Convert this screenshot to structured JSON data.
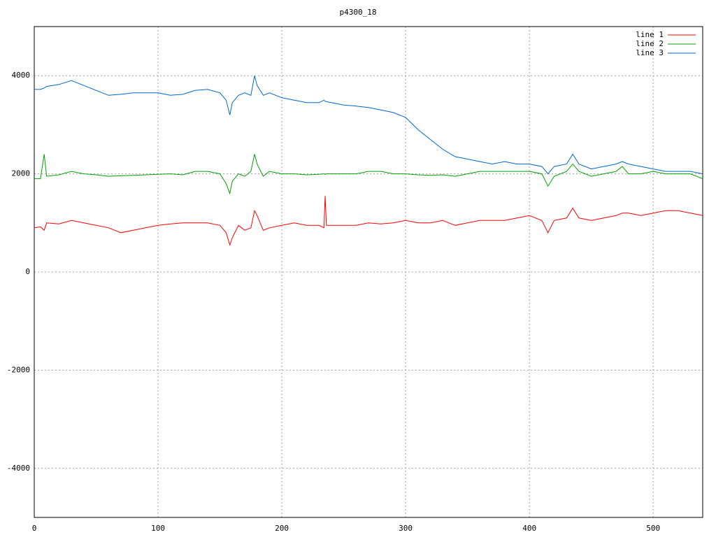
{
  "chart_data": {
    "type": "line",
    "title": "p4300_18",
    "x": [
      0,
      5,
      8,
      10,
      20,
      30,
      40,
      50,
      60,
      70,
      80,
      90,
      100,
      110,
      120,
      130,
      140,
      150,
      155,
      158,
      160,
      165,
      170,
      175,
      178,
      180,
      185,
      190,
      200,
      210,
      220,
      230,
      234,
      235,
      236,
      240,
      250,
      260,
      270,
      280,
      290,
      300,
      310,
      320,
      330,
      340,
      350,
      360,
      370,
      380,
      390,
      400,
      410,
      415,
      420,
      430,
      435,
      440,
      450,
      460,
      470,
      475,
      480,
      490,
      500,
      510,
      520,
      530,
      540
    ],
    "series": [
      {
        "name": "line 1",
        "color": "#ff0000",
        "values": [
          900,
          920,
          850,
          1000,
          980,
          1050,
          1000,
          950,
          900,
          800,
          850,
          900,
          950,
          980,
          1000,
          1000,
          1000,
          950,
          800,
          550,
          700,
          950,
          850,
          900,
          1250,
          1150,
          850,
          900,
          950,
          1000,
          950,
          950,
          900,
          1550,
          950,
          950,
          950,
          950,
          1000,
          980,
          1000,
          1050,
          1000,
          1000,
          1050,
          950,
          1000,
          1050,
          1050,
          1050,
          1100,
          1150,
          1050,
          800,
          1050,
          1100,
          1300,
          1100,
          1050,
          1100,
          1150,
          1200,
          1200,
          1150,
          1200,
          1250,
          1250,
          1200,
          1150
        ]
      },
      {
        "name": "line 2",
        "color": "#00a000",
        "values": [
          1900,
          1900,
          2400,
          1950,
          1980,
          2050,
          2000,
          1980,
          1950,
          1960,
          1970,
          1980,
          1990,
          2000,
          1980,
          2050,
          2050,
          2000,
          1800,
          1600,
          1850,
          2000,
          1950,
          2050,
          2400,
          2200,
          1950,
          2050,
          2000,
          2000,
          1980,
          1990,
          2000,
          1990,
          2000,
          2000,
          2000,
          2000,
          2050,
          2050,
          2000,
          2000,
          1980,
          1970,
          1980,
          1950,
          2000,
          2050,
          2050,
          2050,
          2050,
          2050,
          2000,
          1750,
          1950,
          2050,
          2200,
          2050,
          1950,
          2000,
          2050,
          2150,
          2000,
          2000,
          2050,
          2000,
          2000,
          2000,
          1900
        ]
      },
      {
        "name": "line 3",
        "color": "#0066cc",
        "values": [
          3720,
          3720,
          3750,
          3780,
          3820,
          3900,
          3800,
          3700,
          3600,
          3620,
          3650,
          3650,
          3650,
          3600,
          3620,
          3700,
          3720,
          3650,
          3500,
          3200,
          3450,
          3600,
          3650,
          3600,
          4000,
          3800,
          3600,
          3650,
          3550,
          3500,
          3450,
          3450,
          3500,
          3480,
          3470,
          3450,
          3400,
          3380,
          3350,
          3300,
          3250,
          3150,
          2900,
          2700,
          2500,
          2350,
          2300,
          2250,
          2200,
          2250,
          2200,
          2200,
          2150,
          2000,
          2150,
          2200,
          2400,
          2200,
          2100,
          2150,
          2200,
          2250,
          2200,
          2150,
          2100,
          2050,
          2050,
          2050,
          2000
        ]
      }
    ],
    "xlim": [
      0,
      540
    ],
    "ylim": [
      -5000,
      5000
    ],
    "xticks": [
      0,
      100,
      200,
      300,
      400,
      500
    ],
    "yticks": [
      -4000,
      -2000,
      0,
      2000,
      4000
    ],
    "grid": true,
    "legend": "top-right"
  }
}
